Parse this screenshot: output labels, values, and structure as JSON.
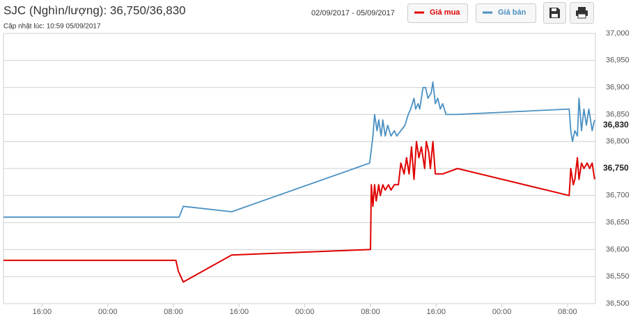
{
  "chart_data": {
    "type": "line",
    "title": "SJC (Nghìn/lượng): 36,750/36,830",
    "subtitle": "Cập nhật lúc: 10:59 05/09/2017",
    "date_range": "02/09/2017 - 05/09/2017",
    "xlim": [
      11.3,
      83.4
    ],
    "xticks": [
      {
        "value": 16,
        "label": "16:00"
      },
      {
        "value": 24,
        "label": "00:00"
      },
      {
        "value": 32,
        "label": "08:00"
      },
      {
        "value": 40,
        "label": "16:00"
      },
      {
        "value": 48,
        "label": "00:00"
      },
      {
        "value": 56,
        "label": "08:00"
      },
      {
        "value": 64,
        "label": "16:00"
      },
      {
        "value": 72,
        "label": "00:00"
      },
      {
        "value": 80,
        "label": "08:00"
      }
    ],
    "ylim": [
      36500,
      37000
    ],
    "yticks": [
      {
        "value": 36500,
        "label": "36,500"
      },
      {
        "value": 36550,
        "label": "36,550"
      },
      {
        "value": 36600,
        "label": "36,600"
      },
      {
        "value": 36650,
        "label": "36,650"
      },
      {
        "value": 36700,
        "label": "36,700"
      },
      {
        "value": 36750,
        "label": "36,750"
      },
      {
        "value": 36800,
        "label": "36,800"
      },
      {
        "value": 36850,
        "label": "36,850"
      },
      {
        "value": 36900,
        "label": "36,900"
      },
      {
        "value": 36950,
        "label": "36,950"
      },
      {
        "value": 37000,
        "label": "37,000"
      }
    ],
    "grid": true,
    "series": [
      {
        "name": "Giá mua",
        "color": "#e00000",
        "current": {
          "value": 36750,
          "label": "36,750"
        },
        "x": [
          11.3,
          32.3,
          32.6,
          32.9,
          33.2,
          39.1,
          55.9,
          56.0,
          56.1,
          56.3,
          56.5,
          56.7,
          57.0,
          57.2,
          57.5,
          57.8,
          58.2,
          58.5,
          58.9,
          59.4,
          59.7,
          60.1,
          60.4,
          60.7,
          61.0,
          61.3,
          61.6,
          61.9,
          62.2,
          62.6,
          62.8,
          63.1,
          63.3,
          63.6,
          63.9,
          64.2,
          64.8,
          66.6,
          80.2,
          80.4,
          80.7,
          80.9,
          81.2,
          81.4,
          81.7,
          82.0,
          82.4,
          82.7,
          83.0,
          83.3
        ],
        "values": [
          36580,
          36580,
          36560,
          36550,
          36540,
          36590,
          36600,
          36600,
          36720,
          36680,
          36720,
          36690,
          36720,
          36700,
          36720,
          36710,
          36720,
          36710,
          36720,
          36720,
          36760,
          36740,
          36770,
          36740,
          36790,
          36730,
          36800,
          36770,
          36790,
          36750,
          36800,
          36780,
          36750,
          36800,
          36740,
          36740,
          36740,
          36750,
          36700,
          36750,
          36720,
          36730,
          36770,
          36730,
          36760,
          36750,
          36760,
          36750,
          36760,
          36730
        ]
      },
      {
        "name": "Giá bán",
        "color": "#4a90c2",
        "current": {
          "value": 36830,
          "label": "36,830"
        },
        "x": [
          11.3,
          32.7,
          33.2,
          39.1,
          55.9,
          56.3,
          56.5,
          56.8,
          57.0,
          57.3,
          57.5,
          57.8,
          58.1,
          58.5,
          58.9,
          59.2,
          59.7,
          60.2,
          60.6,
          60.9,
          61.3,
          61.5,
          61.8,
          62.0,
          62.4,
          62.7,
          63.0,
          63.4,
          63.6,
          63.9,
          64.2,
          64.5,
          64.8,
          65.2,
          66.5,
          80.2,
          80.4,
          80.6,
          80.9,
          81.2,
          81.4,
          81.7,
          82.0,
          82.3,
          82.6,
          83.0,
          83.3
        ],
        "values": [
          36660,
          36660,
          36680,
          36670,
          36760,
          36810,
          36850,
          36820,
          36840,
          36810,
          36840,
          36810,
          36830,
          36810,
          36820,
          36810,
          36820,
          36830,
          36850,
          36860,
          36880,
          36860,
          36870,
          36860,
          36900,
          36900,
          36880,
          36890,
          36910,
          36870,
          36880,
          36860,
          36870,
          36850,
          36850,
          36860,
          36820,
          36800,
          36820,
          36810,
          36880,
          36820,
          36860,
          36830,
          36860,
          36820,
          36840
        ]
      }
    ]
  }
}
